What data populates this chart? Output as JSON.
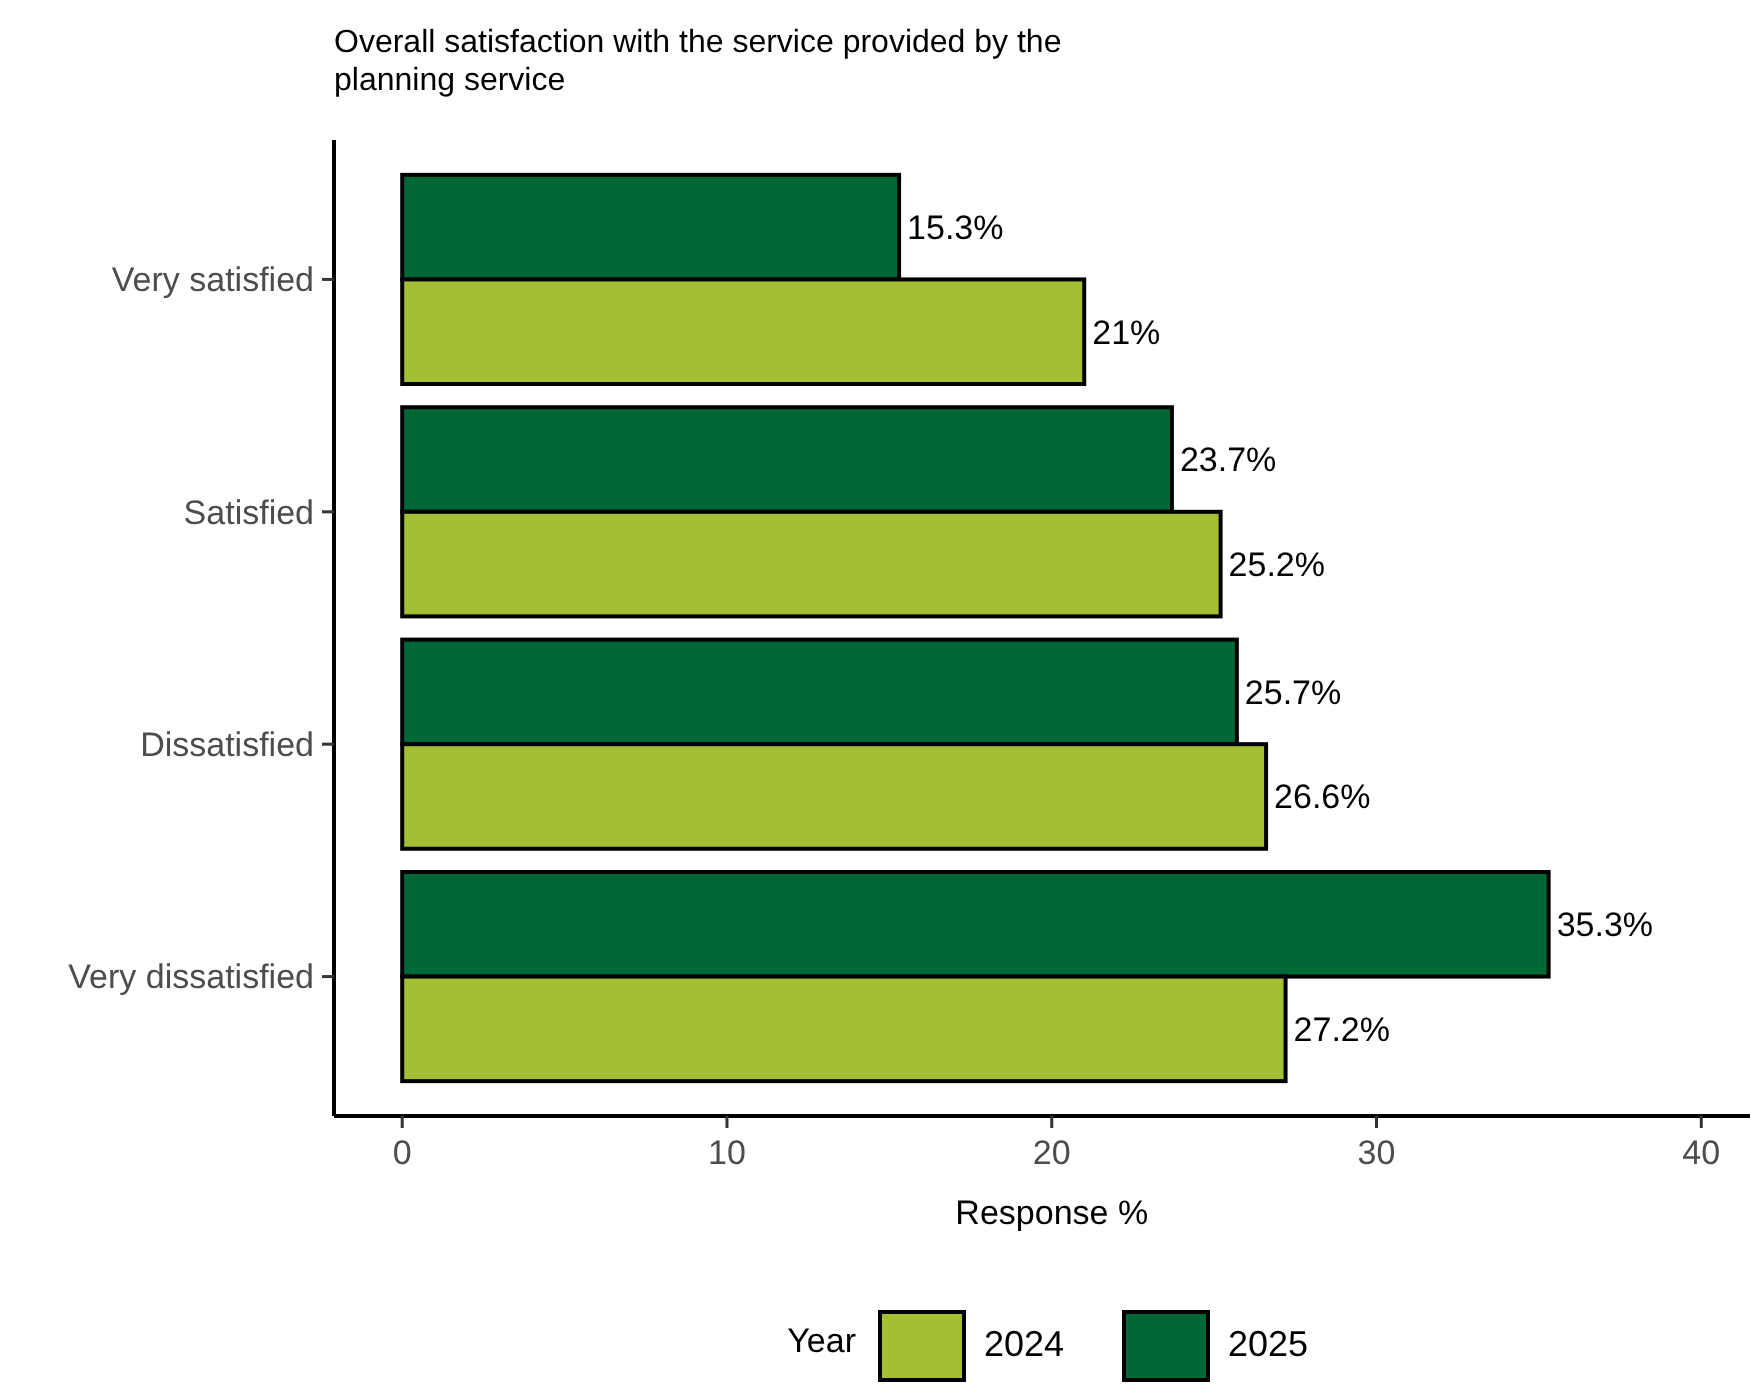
{
  "chart_data": {
    "type": "bar",
    "orientation": "horizontal",
    "title": "Overall satisfaction with the service provided by the planning service",
    "xlabel": "Response %",
    "legend_title": "Year",
    "categories": [
      "Very satisfied",
      "Satisfied",
      "Dissatisfied",
      "Very dissatisfied"
    ],
    "series": [
      {
        "name": "2025",
        "color": "#006837",
        "values": [
          15.3,
          23.7,
          25.7,
          35.3
        ],
        "value_labels": [
          "15.3%",
          "23.7%",
          "25.7%",
          "35.3%"
        ]
      },
      {
        "name": "2024",
        "color": "#a3c034",
        "values": [
          21,
          25.2,
          26.6,
          27.2
        ],
        "value_labels": [
          "21%",
          "25.2%",
          "26.6%",
          "27.2%"
        ]
      }
    ],
    "xlim": [
      -2.1,
      41.5
    ],
    "xticks": [
      0,
      10,
      20,
      30,
      40
    ],
    "legend": "bottom",
    "grid": false
  }
}
